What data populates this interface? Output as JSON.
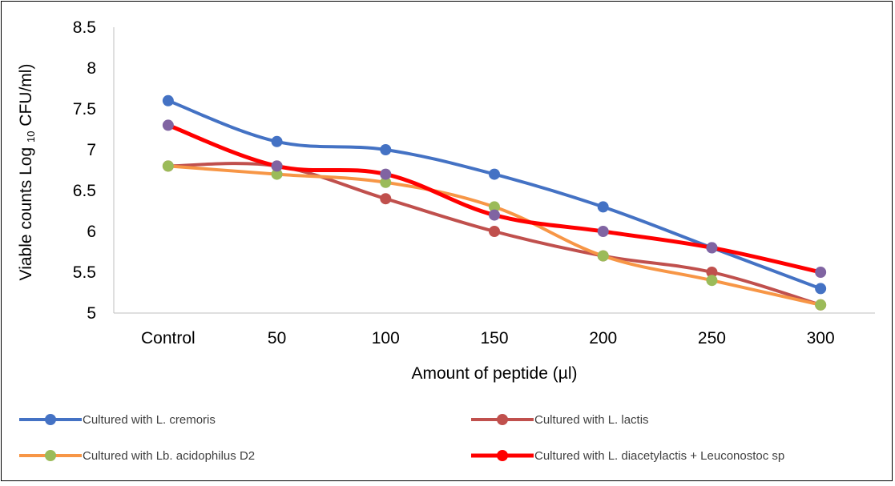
{
  "chart_data": {
    "type": "line",
    "categories": [
      "Control",
      "50",
      "100",
      "150",
      "200",
      "250",
      "300"
    ],
    "xlabel": "Amount of peptide (µl)",
    "ylabel_parts": {
      "prefix": "Viable counts Log ",
      "subscript": "10",
      "suffix": " CFU/ml)"
    },
    "ylim": [
      5,
      8.5
    ],
    "yticks": [
      "5",
      "5.5",
      "6",
      "6.5",
      "7",
      "7.5",
      "8",
      "8.5"
    ],
    "grid": false,
    "legend_position": "bottom",
    "series": [
      {
        "name": "Cultured with L. cremoris",
        "color": "#4472C4",
        "marker_color": "#4472C4",
        "width": 4,
        "z": 1,
        "values": [
          7.6,
          7.1,
          7.0,
          6.7,
          6.3,
          5.8,
          5.3
        ]
      },
      {
        "name": "Cultured with L. lactis",
        "color": "#C0504D",
        "marker_color": "#C0504D",
        "width": 4,
        "z": 0,
        "values": [
          6.8,
          6.8,
          6.4,
          6.0,
          5.7,
          5.5,
          5.1
        ]
      },
      {
        "name": "Cultured with Lb. acidophilus D2",
        "color": "#F79646",
        "marker_color": "#9BBB59",
        "width": 4,
        "z": 2,
        "values": [
          6.8,
          6.7,
          6.6,
          6.3,
          5.7,
          5.4,
          5.1
        ]
      },
      {
        "name": "Cultured with L. diacetylactis + Leuconostoc sp",
        "color": "#FF0000",
        "marker_color": "#8064A2",
        "legend_marker_color": "#FF0000",
        "width": 5,
        "z": 3,
        "values": [
          7.3,
          6.8,
          6.7,
          6.2,
          6.0,
          5.8,
          5.5
        ]
      }
    ]
  }
}
